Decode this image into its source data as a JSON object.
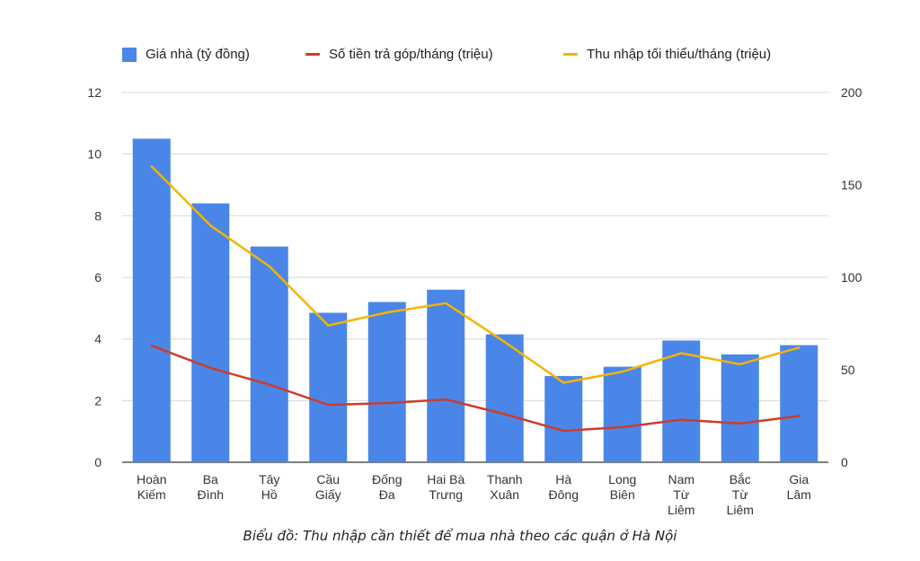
{
  "chart_data": {
    "type": "bar+line",
    "categories": [
      [
        "Hoàn",
        "Kiếm"
      ],
      [
        "Ba",
        "Đình"
      ],
      [
        "Tây",
        "Hồ"
      ],
      [
        "Cầu",
        "Giấy"
      ],
      [
        "Đống",
        "Đa"
      ],
      [
        "Hai Bà",
        "Trưng"
      ],
      [
        "Thanh",
        "Xuân"
      ],
      [
        "Hà",
        "Đông"
      ],
      [
        "Long",
        "Biên"
      ],
      [
        "Nam",
        "Từ",
        "Liêm"
      ],
      [
        "Bắc",
        "Từ",
        "Liêm"
      ],
      [
        "Gia",
        "Lâm"
      ]
    ],
    "series": [
      {
        "name": "Giá nhà (tỷ đồng)",
        "type": "bar",
        "axis": "left",
        "color": "#4a86e8",
        "values": [
          10.5,
          8.4,
          7.0,
          4.85,
          5.2,
          5.6,
          4.15,
          2.8,
          3.1,
          3.95,
          3.5,
          3.8
        ]
      },
      {
        "name": "Số tiền trả góp/tháng (triệu)",
        "type": "line",
        "axis": "right",
        "color": "#cc3c2c",
        "values": [
          63,
          51,
          42,
          31,
          32,
          34,
          26,
          17,
          19,
          23,
          21,
          25
        ]
      },
      {
        "name": "Thu nhập tối thiểu/tháng (triệu)",
        "type": "line",
        "axis": "right",
        "color": "#f4b400",
        "values": [
          160,
          128,
          106,
          74,
          81,
          86,
          65,
          43,
          49,
          59,
          53,
          62
        ]
      }
    ],
    "yleft": {
      "min": 0,
      "max": 12,
      "ticks": [
        "0",
        "2",
        "4",
        "6",
        "8",
        "10",
        "12"
      ]
    },
    "yright": {
      "min": 0,
      "max": 200,
      "ticks": [
        "0",
        "50",
        "100",
        "150",
        "200"
      ]
    },
    "grid": true,
    "legend_position": "top",
    "caption": "Biểu đồ: Thu nhập cần thiết để mua nhà theo các quận ở Hà Nội"
  }
}
